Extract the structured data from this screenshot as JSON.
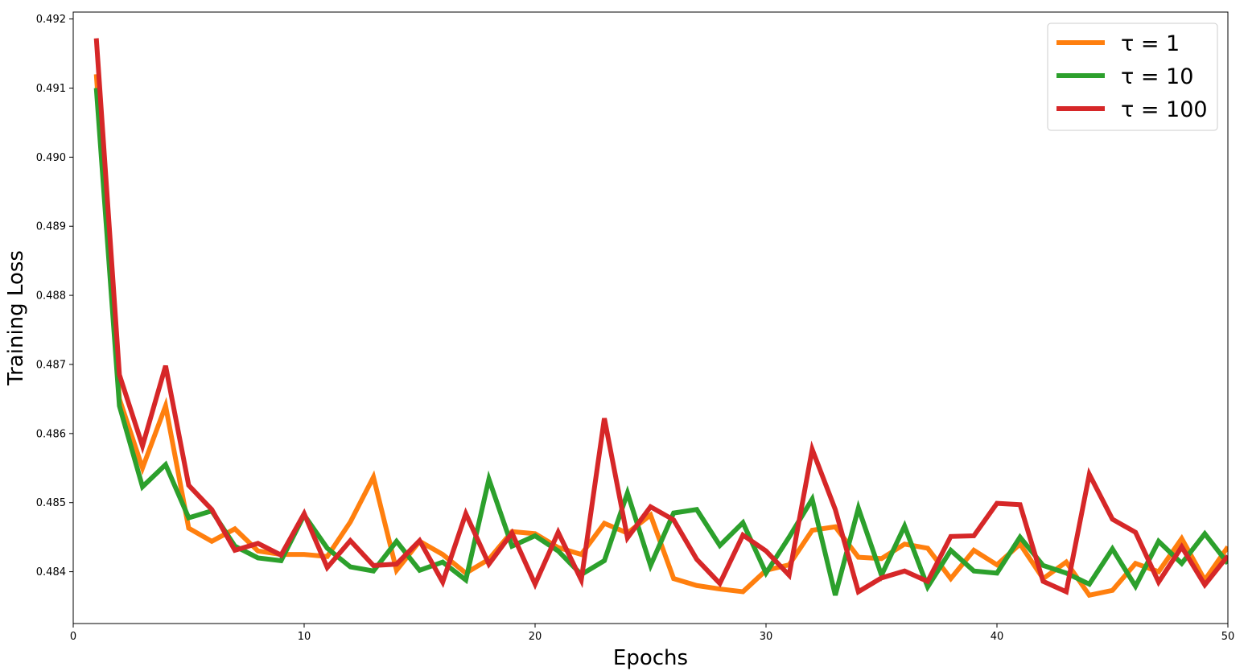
{
  "chart_data": {
    "type": "line",
    "title": "",
    "xlabel": "Epochs",
    "ylabel": "Training Loss",
    "xlim": [
      0,
      50
    ],
    "ylim": [
      0.48325,
      0.4921
    ],
    "x_ticks": [
      0,
      10,
      20,
      30,
      40,
      50
    ],
    "y_ticks": [
      0.484,
      0.485,
      0.486,
      0.487,
      0.488,
      0.489,
      0.49,
      0.491,
      0.492
    ],
    "y_tick_labels": [
      "0.484",
      "0.485",
      "0.486",
      "0.487",
      "0.488",
      "0.489",
      "0.490",
      "0.491",
      "0.492"
    ],
    "grid": false,
    "legend_position": "top-right",
    "x": [
      1,
      2,
      3,
      4,
      5,
      6,
      7,
      8,
      9,
      10,
      11,
      12,
      13,
      14,
      15,
      16,
      17,
      18,
      19,
      20,
      21,
      22,
      23,
      24,
      25,
      26,
      27,
      28,
      29,
      30,
      31,
      32,
      33,
      34,
      35,
      36,
      37,
      38,
      39,
      40,
      41,
      42,
      43,
      44,
      45,
      46,
      47,
      48,
      49,
      50
    ],
    "series": [
      {
        "name": "τ = 1",
        "color": "#ff7f0e",
        "values": [
          0.4912,
          0.4865,
          0.4855,
          0.4864,
          0.48463,
          0.48444,
          0.48462,
          0.4843,
          0.48425,
          0.48425,
          0.48422,
          0.48472,
          0.48537,
          0.48402,
          0.48444,
          0.48425,
          0.48398,
          0.48418,
          0.48458,
          0.48455,
          0.48435,
          0.48425,
          0.4847,
          0.48456,
          0.48482,
          0.4839,
          0.4838,
          0.48375,
          0.48371,
          0.48402,
          0.4841,
          0.4846,
          0.48465,
          0.48421,
          0.48419,
          0.4844,
          0.48434,
          0.4839,
          0.48431,
          0.4841,
          0.4844,
          0.4839,
          0.48414,
          0.48366,
          0.48373,
          0.48412,
          0.484,
          0.48448,
          0.48388,
          0.48436
        ]
      },
      {
        "name": "τ = 10",
        "color": "#2ca02c",
        "values": [
          0.491,
          0.4864,
          0.48523,
          0.48555,
          0.48478,
          0.48488,
          0.48437,
          0.4842,
          0.48416,
          0.48482,
          0.48434,
          0.48407,
          0.48401,
          0.48444,
          0.48402,
          0.48414,
          0.48388,
          0.48534,
          0.48437,
          0.48452,
          0.4843,
          0.48396,
          0.48416,
          0.48514,
          0.48409,
          0.48485,
          0.4849,
          0.48438,
          0.48471,
          0.48398,
          0.4845,
          0.48505,
          0.48366,
          0.48492,
          0.48395,
          0.48466,
          0.48378,
          0.48431,
          0.48401,
          0.48398,
          0.4845,
          0.48409,
          0.48398,
          0.48382,
          0.48433,
          0.48379,
          0.48444,
          0.48412,
          0.48455,
          0.48412
        ]
      },
      {
        "name": "τ = 100",
        "color": "#d62728",
        "values": [
          0.49172,
          0.48685,
          0.48582,
          0.48698,
          0.48525,
          0.4849,
          0.48431,
          0.48441,
          0.48424,
          0.48484,
          0.48406,
          0.48445,
          0.48409,
          0.48411,
          0.48445,
          0.48385,
          0.48484,
          0.48411,
          0.48456,
          0.48382,
          0.48457,
          0.48388,
          0.48622,
          0.48449,
          0.48494,
          0.48475,
          0.48418,
          0.48383,
          0.48453,
          0.4843,
          0.48395,
          0.48577,
          0.4849,
          0.48371,
          0.48391,
          0.48401,
          0.48386,
          0.48451,
          0.48452,
          0.48499,
          0.48497,
          0.48386,
          0.48371,
          0.48541,
          0.48476,
          0.48457,
          0.48385,
          0.48436,
          0.48381,
          0.48423
        ]
      }
    ]
  }
}
